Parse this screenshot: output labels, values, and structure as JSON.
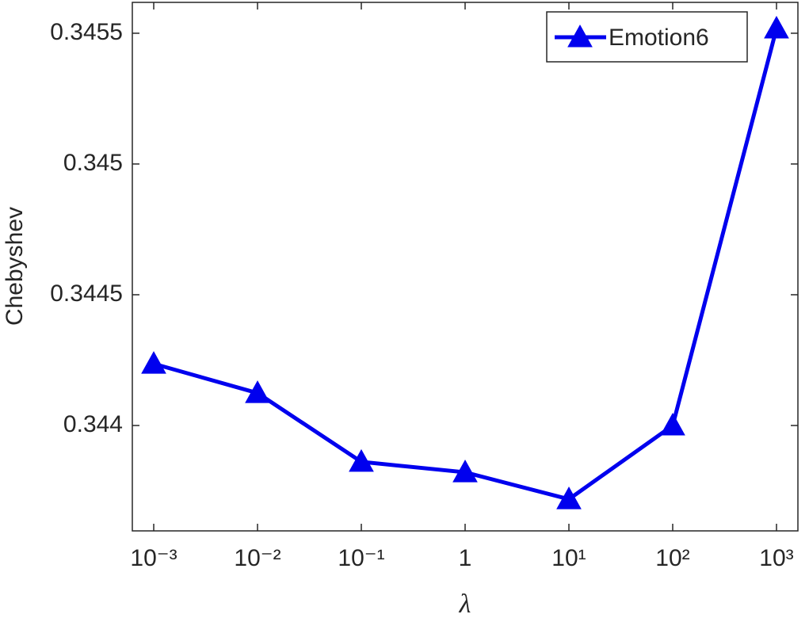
{
  "chart_data": {
    "type": "line",
    "x_label": "λ",
    "y_label": "Chebyshev",
    "log_x": true,
    "legend": "upper right",
    "x": [
      0.001,
      0.01,
      0.1,
      1,
      10,
      100,
      1000
    ],
    "series": [
      {
        "name": "Emotion6",
        "color": "#0000ee",
        "values": [
          0.344236,
          0.344124,
          0.343861,
          0.343821,
          0.343718,
          0.344,
          0.345518
        ]
      }
    ],
    "xlim": [
      0.000622,
      1608
    ],
    "xticks": [
      {
        "value": 0.001,
        "label": "10⁻³"
      },
      {
        "value": 0.01,
        "label": "10⁻²"
      },
      {
        "value": 0.1,
        "label": "10⁻¹"
      },
      1,
      {
        "value": 10,
        "label": "10¹"
      },
      {
        "value": 100,
        "label": "10²"
      },
      {
        "value": 1000,
        "label": "10³"
      }
    ],
    "ylim": [
      0.343597,
      0.345618
    ],
    "yticks": [
      0.344,
      0.3445,
      0.345,
      0.3455
    ]
  }
}
